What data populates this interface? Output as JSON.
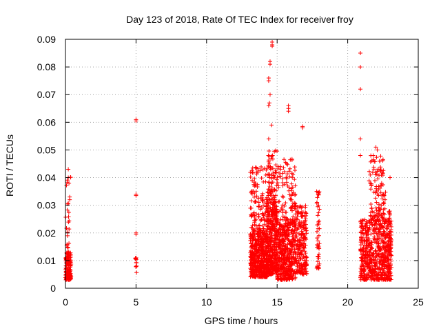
{
  "chart_data": {
    "type": "scatter",
    "title": "Day 123 of 2018, Rate Of TEC Index for receiver froy",
    "xlabel": "GPS time / hours",
    "ylabel": "ROTI / TECUs",
    "xlim": [
      0,
      25
    ],
    "ylim": [
      0,
      0.09
    ],
    "xticks": [
      0,
      5,
      10,
      15,
      20,
      25
    ],
    "xtick_labels": [
      "0",
      "5",
      "10",
      "15",
      "20",
      "25"
    ],
    "yticks": [
      0,
      0.01,
      0.02,
      0.03,
      0.04,
      0.05,
      0.06,
      0.07,
      0.08,
      0.09
    ],
    "ytick_labels": [
      "0",
      "0.01",
      "0.02",
      "0.03",
      "0.04",
      "0.05",
      "0.06",
      "0.07",
      "0.08",
      "0.09"
    ],
    "grid": true,
    "marker": "+",
    "color": "#ff0000",
    "clusters": [
      {
        "x_range": [
          0.0,
          0.4
        ],
        "y_range": [
          0.003,
          0.013
        ],
        "n": 140
      },
      {
        "x_range": [
          0.0,
          0.4
        ],
        "y_range": [
          0.013,
          0.043
        ],
        "n": 22
      },
      {
        "x_range": [
          4.95,
          5.05
        ],
        "y_range": [
          0.004,
          0.011
        ],
        "n": 12
      },
      {
        "x_range": [
          13.1,
          14.3
        ],
        "y_range": [
          0.004,
          0.02
        ],
        "n": 520
      },
      {
        "x_range": [
          13.1,
          14.3
        ],
        "y_range": [
          0.02,
          0.044
        ],
        "n": 140
      },
      {
        "x_range": [
          14.3,
          15.0
        ],
        "y_range": [
          0.005,
          0.03
        ],
        "n": 380
      },
      {
        "x_range": [
          14.3,
          15.0
        ],
        "y_range": [
          0.03,
          0.05
        ],
        "n": 90
      },
      {
        "x_range": [
          15.0,
          16.3
        ],
        "y_range": [
          0.003,
          0.025
        ],
        "n": 480
      },
      {
        "x_range": [
          15.0,
          16.3
        ],
        "y_range": [
          0.025,
          0.047
        ],
        "n": 90
      },
      {
        "x_range": [
          16.3,
          17.1
        ],
        "y_range": [
          0.005,
          0.03
        ],
        "n": 220
      },
      {
        "x_range": [
          17.8,
          18.0
        ],
        "y_range": [
          0.007,
          0.035
        ],
        "n": 45
      },
      {
        "x_range": [
          20.9,
          23.1
        ],
        "y_range": [
          0.003,
          0.025
        ],
        "n": 640
      },
      {
        "x_range": [
          21.5,
          22.7
        ],
        "y_range": [
          0.025,
          0.048
        ],
        "n": 110
      },
      {
        "x_range": [
          22.9,
          23.1
        ],
        "y_range": [
          0.012,
          0.028
        ],
        "n": 35
      }
    ],
    "points": [
      [
        5.0,
        0.061
      ],
      [
        5.0,
        0.0605
      ],
      [
        5.0,
        0.034
      ],
      [
        5.0,
        0.0335
      ],
      [
        5.0,
        0.02
      ],
      [
        5.0,
        0.0195
      ],
      [
        14.65,
        0.089
      ],
      [
        14.65,
        0.088
      ],
      [
        14.65,
        0.0875
      ],
      [
        14.5,
        0.082
      ],
      [
        14.5,
        0.081
      ],
      [
        14.4,
        0.076
      ],
      [
        14.4,
        0.075
      ],
      [
        14.5,
        0.07
      ],
      [
        14.45,
        0.067
      ],
      [
        14.4,
        0.066
      ],
      [
        14.6,
        0.059
      ],
      [
        14.4,
        0.054
      ],
      [
        15.8,
        0.066
      ],
      [
        15.8,
        0.065
      ],
      [
        15.8,
        0.064
      ],
      [
        16.8,
        0.058
      ],
      [
        16.8,
        0.0585
      ],
      [
        20.9,
        0.085
      ],
      [
        20.9,
        0.08
      ],
      [
        20.9,
        0.072
      ],
      [
        20.9,
        0.054
      ],
      [
        20.9,
        0.048
      ],
      [
        22.0,
        0.051
      ],
      [
        22.1,
        0.05
      ],
      [
        22.0,
        0.042
      ],
      [
        0.2,
        0.043
      ],
      [
        0.2,
        0.04
      ],
      [
        0.25,
        0.038
      ],
      [
        0.3,
        0.033
      ],
      [
        0.3,
        0.032
      ],
      [
        17.8,
        0.035
      ],
      [
        17.9,
        0.034
      ],
      [
        23.0,
        0.04
      ]
    ]
  }
}
